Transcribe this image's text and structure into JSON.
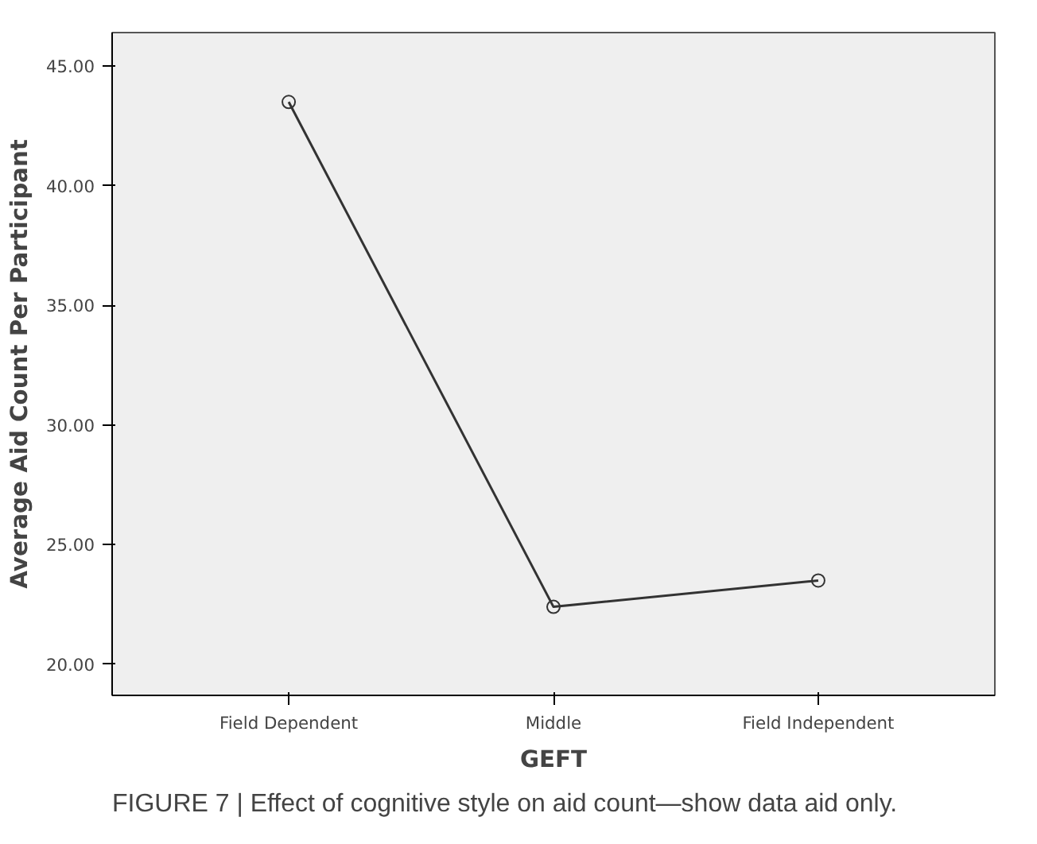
{
  "chart_data": {
    "type": "line",
    "xlabel": "GEFT",
    "ylabel": "Average Aid Count Per Participant",
    "categories": [
      "Field Dependent",
      "Middle",
      "Field Independent"
    ],
    "values": [
      43.5,
      22.4,
      23.5
    ],
    "color": "#333333",
    "marker": "circle",
    "line_style": "solid",
    "grid": false,
    "ylim": [
      18.7,
      46.4
    ],
    "yticks": [
      {
        "value": 20,
        "label": "20.00"
      },
      {
        "value": 25,
        "label": "25.00"
      },
      {
        "value": 30,
        "label": "30.00"
      },
      {
        "value": 35,
        "label": "35.00"
      },
      {
        "value": 40,
        "label": "40.00"
      },
      {
        "value": 45,
        "label": "45.00"
      }
    ],
    "annotations": [
      "FIGURE 7 | Effect of cognitive style on aid count—show data aid only."
    ]
  }
}
